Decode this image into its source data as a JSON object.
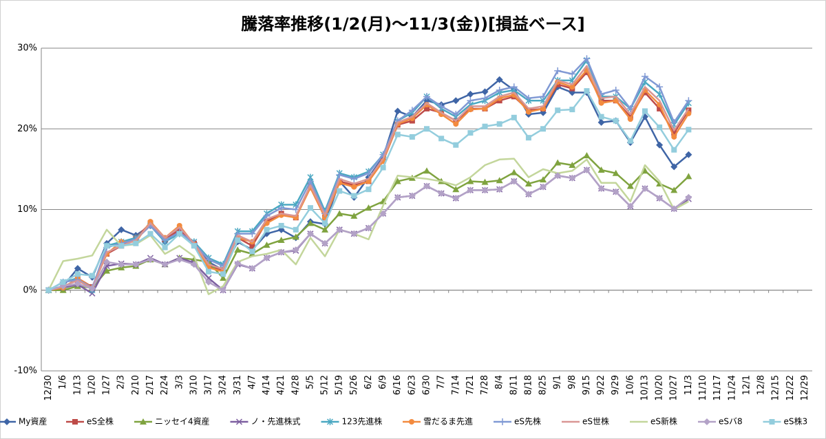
{
  "chart_data": {
    "type": "line",
    "title": "騰落率推移(1/2(月)～11/3(金))[損益ベース]",
    "categories": [
      "12/30",
      "1/6",
      "1/13",
      "1/20",
      "1/27",
      "2/3",
      "2/10",
      "2/17",
      "2/24",
      "3/3",
      "3/10",
      "3/17",
      "3/24",
      "3/31",
      "4/7",
      "4/14",
      "4/21",
      "4/28",
      "5/5",
      "5/12",
      "5/19",
      "5/26",
      "6/2",
      "6/9",
      "6/16",
      "6/23",
      "6/30",
      "7/7",
      "7/14",
      "7/21",
      "7/28",
      "8/4",
      "8/11",
      "8/18",
      "8/25",
      "9/1",
      "9/8",
      "9/15",
      "9/22",
      "9/29",
      "10/6",
      "10/13",
      "10/20",
      "10/27",
      "11/3",
      "11/10",
      "11/17",
      "11/24",
      "12/1",
      "12/8",
      "12/15",
      "12/22",
      "12/29"
    ],
    "ylim": [
      -10,
      30
    ],
    "yticks": [
      {
        "value": -10,
        "label": "-10%"
      },
      {
        "value": 0,
        "label": "0%"
      },
      {
        "value": 10,
        "label": "10%"
      },
      {
        "value": 20,
        "label": "20%"
      },
      {
        "value": 30,
        "label": "30%"
      }
    ],
    "grid": true,
    "legend": "bottom",
    "series": [
      {
        "name": "My資産",
        "color": "#3F65A6",
        "marker": "diamond",
        "values": [
          0,
          0.5,
          2.7,
          1.6,
          5.8,
          7.5,
          6.8,
          8.0,
          6.0,
          7.5,
          5.9,
          3.5,
          2.5,
          6.0,
          5.0,
          7.0,
          7.5,
          6.5,
          8.5,
          8.2,
          13.5,
          11.5,
          14.0,
          16.5,
          22.2,
          21.5,
          23.5,
          23.0,
          23.5,
          24.3,
          24.6,
          26.1,
          24.8,
          21.8,
          22.0,
          25.2,
          24.5,
          24.5,
          20.8,
          21.0,
          18.3,
          21.5,
          18.0,
          15.3,
          16.8,
          null,
          null,
          null,
          null,
          null,
          null,
          null,
          null
        ]
      },
      {
        "name": "eS全株",
        "color": "#BE4B48",
        "marker": "square",
        "values": [
          0,
          0.2,
          1.5,
          0.4,
          4.5,
          5.5,
          6.5,
          8.3,
          6.3,
          7.5,
          5.8,
          3.0,
          2.5,
          6.5,
          5.5,
          8.5,
          9.5,
          9.0,
          13.0,
          9.0,
          13.5,
          13.0,
          13.5,
          16.0,
          20.5,
          21.0,
          22.5,
          22.0,
          21.0,
          22.5,
          22.5,
          23.5,
          24.0,
          22.3,
          22.5,
          25.5,
          25.0,
          27.0,
          23.5,
          23.5,
          21.5,
          24.5,
          22.5,
          19.5,
          22.3,
          null,
          null,
          null,
          null,
          null,
          null,
          null,
          null
        ]
      },
      {
        "name": "ニッセイ4資産",
        "color": "#7FA33F",
        "marker": "triangle",
        "values": [
          0,
          0,
          0.5,
          0.3,
          2.4,
          2.8,
          3.0,
          3.8,
          3.2,
          4.0,
          3.8,
          3.5,
          1.5,
          5.0,
          4.5,
          5.6,
          6.2,
          6.6,
          8.3,
          7.5,
          9.5,
          9.2,
          10.2,
          11.0,
          13.5,
          13.9,
          14.8,
          13.5,
          12.5,
          13.5,
          13.4,
          13.6,
          14.6,
          13.2,
          13.7,
          15.8,
          15.5,
          16.7,
          14.9,
          14.5,
          12.9,
          14.8,
          13.2,
          12.4,
          14.1,
          null,
          null,
          null,
          null,
          null,
          null,
          null,
          null
        ]
      },
      {
        "name": "ノ・先進株式",
        "color": "#7D5FA0",
        "marker": "x",
        "values": [
          0,
          0.3,
          0.7,
          -0.4,
          3.0,
          3.3,
          3.2,
          4.0,
          3.2,
          4.0,
          3.4,
          1.5,
          0,
          3.2,
          2.7,
          4.0,
          4.7,
          4.9,
          7.0,
          5.8,
          7.5,
          7.0,
          7.7,
          9.5,
          11.5,
          11.7,
          12.9,
          12.0,
          11.4,
          12.4,
          12.4,
          12.5,
          13.5,
          11.9,
          12.8,
          14.2,
          13.9,
          14.9,
          12.6,
          12.2,
          10.4,
          12.6,
          11.4,
          10.1,
          11.3,
          null,
          null,
          null,
          null,
          null,
          null,
          null,
          null
        ]
      },
      {
        "name": "123先進株",
        "color": "#4AA8C2",
        "marker": "star",
        "values": [
          0,
          1.0,
          1.5,
          0,
          5.5,
          6.0,
          6.5,
          8.0,
          6.0,
          7.0,
          6.0,
          4.0,
          3.2,
          7.3,
          7.3,
          9.5,
          10.6,
          10.6,
          14.0,
          9.8,
          14.5,
          14.0,
          14.7,
          16.8,
          21.0,
          22.0,
          24.0,
          22.5,
          21.5,
          23.0,
          23.5,
          24.5,
          24.8,
          23.5,
          23.5,
          26.0,
          26.0,
          28.5,
          24.0,
          24.0,
          22.5,
          25.8,
          24.3,
          20.5,
          23.2,
          null,
          null,
          null,
          null,
          null,
          null,
          null,
          null
        ]
      },
      {
        "name": "雪だるま先進",
        "color": "#F38B3F",
        "marker": "circle",
        "values": [
          0,
          0.3,
          1.5,
          0.3,
          4.5,
          6.0,
          6.0,
          8.5,
          6.5,
          8.0,
          5.7,
          2.8,
          2.3,
          6.5,
          6.0,
          8.3,
          9.3,
          9.0,
          12.7,
          9.0,
          13.3,
          12.8,
          13.5,
          16.0,
          20.6,
          21.3,
          23.0,
          21.8,
          20.6,
          22.4,
          22.5,
          23.8,
          24.2,
          22.1,
          22.5,
          25.8,
          25.2,
          27.3,
          23.2,
          23.5,
          21.2,
          24.8,
          23.0,
          19.0,
          21.9,
          null,
          null,
          null,
          null,
          null,
          null,
          null,
          null
        ]
      },
      {
        "name": "eS先株",
        "color": "#8099D4",
        "marker": "plus",
        "values": [
          0,
          1.0,
          1.3,
          0.3,
          5.3,
          5.8,
          6.3,
          8.0,
          6.2,
          7.2,
          5.8,
          3.8,
          3.0,
          7.0,
          7.0,
          9.2,
          10.2,
          10.0,
          13.5,
          9.5,
          14.3,
          13.8,
          14.5,
          16.8,
          21.0,
          22.3,
          24.0,
          22.8,
          21.8,
          23.5,
          23.8,
          24.8,
          25.2,
          23.8,
          24.0,
          27.2,
          26.8,
          28.7,
          24.3,
          24.8,
          22.5,
          26.5,
          25.2,
          20.8,
          23.5,
          null,
          null,
          null,
          null,
          null,
          null,
          null,
          null
        ]
      },
      {
        "name": "eS世株",
        "color": "#D99694",
        "marker": "none",
        "values": [
          0,
          0.5,
          1.2,
          0.2,
          4.7,
          5.5,
          6.2,
          8.3,
          6.5,
          7.8,
          5.8,
          3.2,
          2.6,
          6.8,
          6.0,
          8.8,
          9.5,
          9.2,
          13.0,
          9.3,
          13.8,
          13.2,
          13.8,
          16.3,
          20.8,
          21.5,
          23.2,
          22.0,
          21.0,
          22.8,
          22.8,
          24.0,
          24.5,
          22.5,
          22.8,
          26.0,
          25.5,
          27.8,
          23.8,
          24.0,
          21.8,
          25.2,
          23.5,
          19.8,
          22.5,
          null,
          null,
          null,
          null,
          null,
          null,
          null,
          null
        ]
      },
      {
        "name": "eS新株",
        "color": "#C3D69B",
        "marker": "none",
        "values": [
          0,
          3.6,
          3.9,
          4.3,
          7.5,
          5.5,
          5.7,
          6.8,
          4.5,
          5.5,
          4.2,
          -0.5,
          0.5,
          3.5,
          4.2,
          4.5,
          5.0,
          3.2,
          6.5,
          4.2,
          7.5,
          7.0,
          6.3,
          10.5,
          14.2,
          14.0,
          13.8,
          13.5,
          13.0,
          14.0,
          15.5,
          16.2,
          16.3,
          14.0,
          15.0,
          14.5,
          14.8,
          16.2,
          13.3,
          13.3,
          11.0,
          15.5,
          13.5,
          10.0,
          11.0,
          null,
          null,
          null,
          null,
          null,
          null,
          null,
          null
        ]
      },
      {
        "name": "eSバ8",
        "color": "#B3A2C7",
        "marker": "diamond",
        "values": [
          0,
          0.5,
          0.8,
          0.2,
          3.5,
          3.2,
          3.2,
          3.8,
          3.2,
          3.8,
          3.2,
          1.0,
          0,
          3.3,
          2.7,
          4.0,
          4.7,
          5.0,
          7.0,
          5.8,
          7.5,
          7.0,
          7.7,
          9.5,
          11.5,
          11.7,
          12.9,
          12.0,
          11.4,
          12.4,
          12.4,
          12.5,
          13.5,
          11.9,
          12.8,
          14.2,
          13.9,
          14.9,
          12.6,
          12.2,
          10.4,
          12.6,
          11.4,
          10.1,
          11.5,
          null,
          null,
          null,
          null,
          null,
          null,
          null,
          null
        ]
      },
      {
        "name": "eS株3",
        "color": "#93CDDD",
        "marker": "square",
        "values": [
          0,
          1.0,
          2.0,
          1.8,
          5.5,
          5.5,
          5.8,
          7.0,
          5.3,
          7.0,
          5.5,
          2.3,
          2.0,
          6.2,
          4.8,
          7.5,
          8.0,
          7.5,
          10.2,
          8.3,
          12.3,
          11.7,
          12.5,
          15.2,
          19.3,
          19.0,
          20.0,
          18.8,
          18.0,
          19.5,
          20.3,
          20.6,
          21.4,
          18.9,
          20.0,
          22.3,
          22.4,
          24.7,
          21.5,
          21.0,
          18.5,
          22.2,
          20.2,
          17.4,
          19.9,
          null,
          null,
          null,
          null,
          null,
          null,
          null,
          null
        ]
      }
    ]
  }
}
